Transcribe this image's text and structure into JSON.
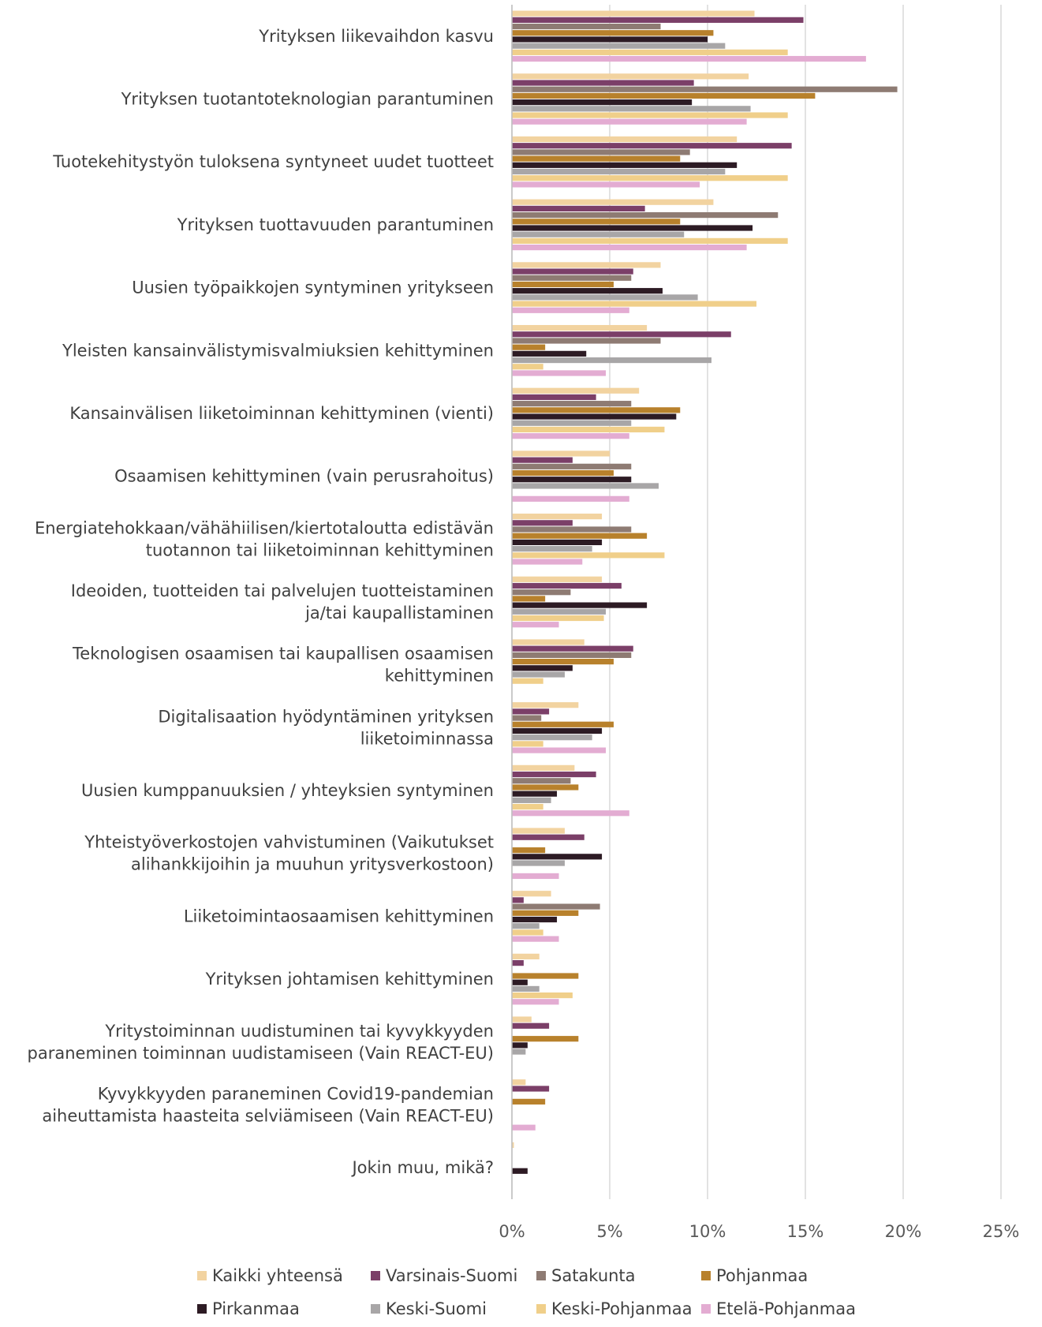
{
  "chart_data": {
    "type": "bar",
    "orientation": "horizontal",
    "categories": [
      "Yrityksen liikevaihdon kasvu",
      "Yrityksen tuotantoteknologian parantuminen",
      "Tuotekehitystyön tuloksena syntyneet uudet tuotteet",
      "Yrityksen tuottavuuden parantuminen",
      "Uusien työpaikkojen syntyminen yritykseen",
      "Yleisten kansainvälistymisvalmiuksien kehittyminen",
      "Kansainvälisen liiketoiminnan kehittyminen (vienti)",
      "Osaamisen kehittyminen (vain perusrahoitus)",
      "Energiatehokkaan/vähähiilisen/kiertotaloutta edistävän tuotannon tai liiketoiminnan kehittyminen",
      "Ideoiden, tuotteiden tai palvelujen tuotteistaminen ja/tai kaupallistaminen",
      "Teknologisen osaamisen tai kaupallisen osaamisen kehittyminen",
      "Digitalisaation hyödyntäminen yrityksen liiketoiminnassa",
      "Uusien kumppanuuksien / yhteyksien syntyminen",
      "Yhteistyöverkostojen vahvistuminen (Vaikutukset alihankkijoihin ja muuhun yritysverkostoon)",
      "Liiketoimintaosaamisen kehittyminen",
      "Yrityksen johtamisen kehittyminen",
      "Yritystoiminnan uudistuminen tai kyvykkyyden paraneminen toiminnan uudistamiseen (Vain REACT-EU)",
      "Kyvykkyyden paraneminen Covid19-pandemian aiheuttamista haasteita selviämiseen (Vain REACT-EU)",
      "Jokin muu, mikä?"
    ],
    "category_lines": [
      [
        "Yrityksen liikevaihdon kasvu"
      ],
      [
        "Yrityksen tuotantoteknologian parantuminen"
      ],
      [
        "Tuotekehitystyön tuloksena syntyneet uudet tuotteet"
      ],
      [
        "Yrityksen tuottavuuden parantuminen"
      ],
      [
        "Uusien työpaikkojen syntyminen yritykseen"
      ],
      [
        "Yleisten kansainvälistymisvalmiuksien kehittyminen"
      ],
      [
        "Kansainvälisen liiketoiminnan kehittyminen (vienti)"
      ],
      [
        "Osaamisen kehittyminen (vain perusrahoitus)"
      ],
      [
        "Energiatehokkaan/vähähiilisen/kiertotaloutta edistävän",
        "tuotannon tai liiketoiminnan kehittyminen"
      ],
      [
        "Ideoiden, tuotteiden tai palvelujen tuotteistaminen",
        "ja/tai kaupallistaminen"
      ],
      [
        "Teknologisen osaamisen tai kaupallisen osaamisen",
        "kehittyminen"
      ],
      [
        "Digitalisaation hyödyntäminen yrityksen",
        "liiketoiminnassa"
      ],
      [
        "Uusien kumppanuuksien / yhteyksien syntyminen"
      ],
      [
        "Yhteistyöverkostojen vahvistuminen (Vaikutukset",
        "alihankkijoihin ja muuhun yritysverkostoon)"
      ],
      [
        "Liiketoimintaosaamisen kehittyminen"
      ],
      [
        "Yrityksen johtamisen kehittyminen"
      ],
      [
        "Yritystoiminnan uudistuminen tai kyvykkyyden",
        "paraneminen toiminnan uudistamiseen (Vain REACT-EU)"
      ],
      [
        "Kyvykkyyden paraneminen Covid19-pandemian",
        "aiheuttamista haasteita selviämiseen (Vain REACT-EU)"
      ],
      [
        "Jokin muu, mikä?"
      ]
    ],
    "series": [
      {
        "name": "Kaikki yhteensä",
        "color": "#f2d3a0",
        "values": [
          12.4,
          12.1,
          11.5,
          10.3,
          7.6,
          6.9,
          6.5,
          5.0,
          4.6,
          4.6,
          3.7,
          3.4,
          3.2,
          2.7,
          2.0,
          1.4,
          1.0,
          0.7,
          0.1
        ]
      },
      {
        "name": "Varsinais-Suomi",
        "color": "#7b3f68",
        "values": [
          14.9,
          9.3,
          14.3,
          6.8,
          6.2,
          11.2,
          4.3,
          3.1,
          3.1,
          5.6,
          6.2,
          1.9,
          4.3,
          3.7,
          0.6,
          0.6,
          1.9,
          1.9,
          0
        ]
      },
      {
        "name": "Satakunta",
        "color": "#8e7b73",
        "values": [
          7.6,
          19.7,
          9.1,
          13.6,
          6.1,
          7.6,
          6.1,
          6.1,
          6.1,
          3.0,
          6.1,
          1.5,
          3.0,
          0,
          4.5,
          0,
          0,
          0,
          0
        ]
      },
      {
        "name": "Pohjanmaa",
        "color": "#b8812c",
        "values": [
          10.3,
          15.5,
          8.6,
          8.6,
          5.2,
          1.7,
          8.6,
          5.2,
          6.9,
          1.7,
          5.2,
          5.2,
          3.4,
          1.7,
          3.4,
          3.4,
          3.4,
          1.7,
          0
        ]
      },
      {
        "name": "Pirkanmaa",
        "color": "#2d1b24",
        "values": [
          10.0,
          9.2,
          11.5,
          12.3,
          7.7,
          3.8,
          8.4,
          6.1,
          4.6,
          6.9,
          3.1,
          4.6,
          2.3,
          4.6,
          2.3,
          0.8,
          0.8,
          0,
          0.8
        ]
      },
      {
        "name": "Keski-Suomi",
        "color": "#a8a6a7",
        "values": [
          10.9,
          12.2,
          10.9,
          8.8,
          9.5,
          10.2,
          6.1,
          7.5,
          4.1,
          4.8,
          2.7,
          4.1,
          2.0,
          2.7,
          1.4,
          1.4,
          0.7,
          0,
          0
        ]
      },
      {
        "name": "Keski-Pohjanmaa",
        "color": "#f0cf8a",
        "values": [
          14.1,
          14.1,
          14.1,
          14.1,
          12.5,
          1.6,
          7.8,
          0,
          7.8,
          4.7,
          1.6,
          1.6,
          1.6,
          0,
          1.6,
          3.1,
          0,
          0,
          0
        ]
      },
      {
        "name": "Etelä-Pohjanmaa",
        "color": "#e3acd2",
        "values": [
          18.1,
          12.0,
          9.6,
          12.0,
          6.0,
          4.8,
          6.0,
          6.0,
          3.6,
          2.4,
          0,
          4.8,
          6.0,
          2.4,
          2.4,
          2.4,
          0,
          1.2,
          0
        ]
      }
    ],
    "xlim": [
      0,
      25
    ],
    "xticks": [
      0,
      5,
      10,
      15,
      20,
      25
    ],
    "xtick_labels": [
      "0%",
      "5%",
      "10%",
      "15%",
      "20%",
      "25%"
    ],
    "grid": true,
    "legend_position": "bottom",
    "title": "",
    "xlabel": "",
    "ylabel": ""
  }
}
